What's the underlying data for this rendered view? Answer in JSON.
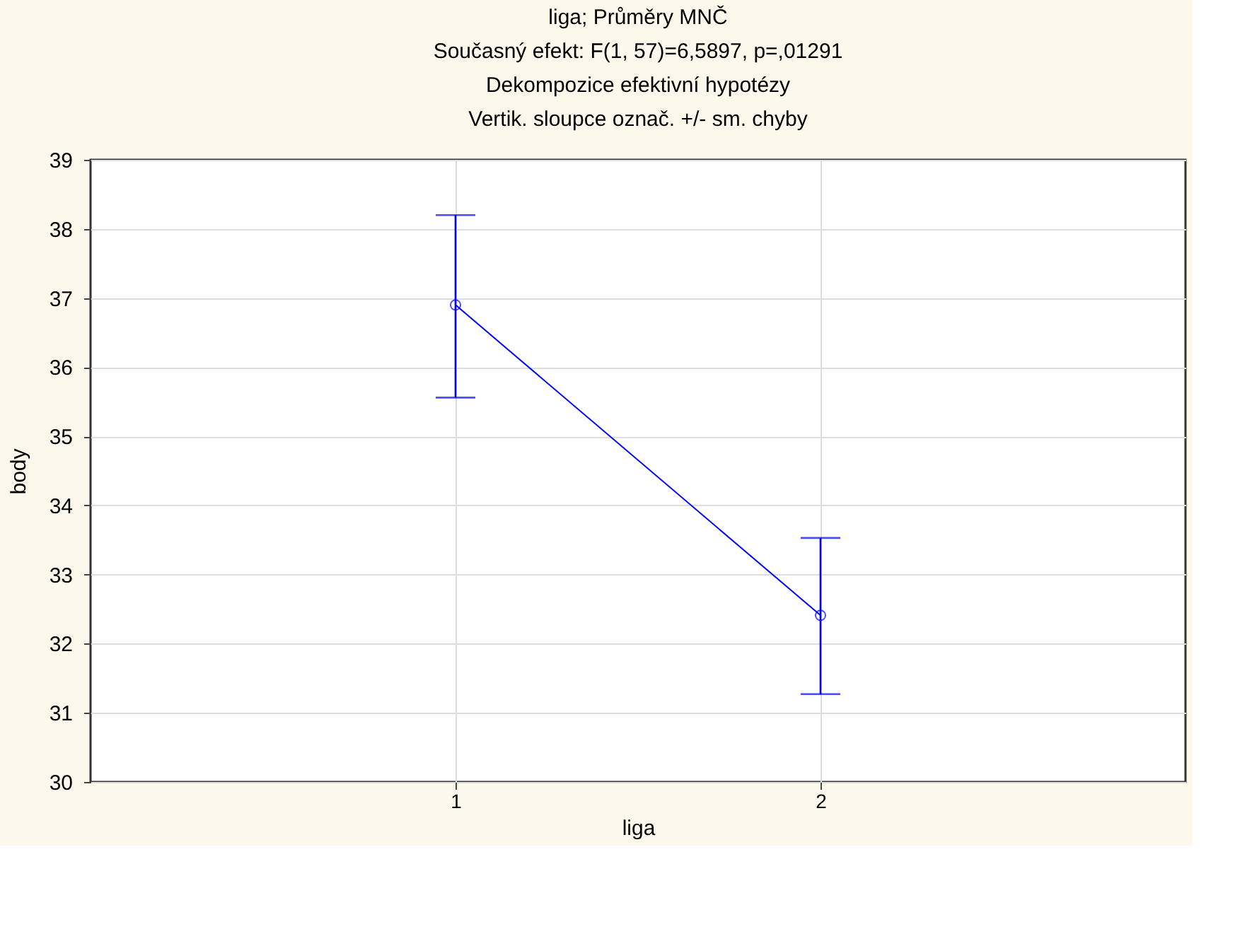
{
  "chart_data": {
    "type": "line",
    "title": "liga; Průměry MNČ",
    "subtitle": "Současný efekt: F(1, 57)=6,5897, p=,01291\nDekompozice efektivní hypotézy\nVertik. sloupce označ. +/- sm. chyby",
    "xlabel": "liga",
    "ylabel": "body",
    "categories": [
      "1",
      "2"
    ],
    "series": [
      {
        "color": "#0000ff",
        "values": [
          36.9,
          32.41
        ],
        "errors": [
          [
            35.56,
            38.2
          ],
          [
            31.27,
            33.53
          ]
        ]
      }
    ],
    "ylim": [
      30,
      39
    ],
    "yticks": [
      30,
      31,
      32,
      33,
      34,
      35,
      36,
      37,
      38,
      39
    ],
    "grid": true,
    "marker": "circle",
    "line_style": "solid"
  }
}
